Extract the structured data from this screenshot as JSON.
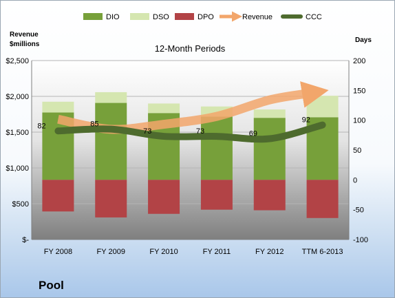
{
  "company": "Pool",
  "chart_data": {
    "type": "bar",
    "title": "12-Month Periods",
    "y_left_label": [
      "Revenue",
      "$millions"
    ],
    "y_right_label": "Days",
    "categories": [
      "FY 2008",
      "FY 2009",
      "FY 2010",
      "FY 2011",
      "FY 2012",
      "TTM 6-2013"
    ],
    "y_left_ticks": [
      "$2,500",
      "$2,000",
      "$1,500",
      "$1,000",
      "$500",
      "$-"
    ],
    "y_left_range": [
      0,
      2500
    ],
    "y_right_ticks": [
      "200",
      "150",
      "100",
      "50",
      "0",
      "-50",
      "-100"
    ],
    "y_right_range": [
      -100,
      200
    ],
    "legend": [
      "DIO",
      "DSO",
      "DPO",
      "Revenue",
      "CCC"
    ],
    "series": [
      {
        "name": "DIO",
        "axis": "right",
        "color": "#77a03a",
        "values": [
          113,
          129,
          112,
          106,
          104,
          105
        ]
      },
      {
        "name": "DSO",
        "axis": "right",
        "color": "#d5e6b0",
        "values": [
          18,
          18,
          16,
          17,
          14,
          36
        ]
      },
      {
        "name": "DPO",
        "axis": "right",
        "color": "#b24346",
        "values": [
          -53,
          -63,
          -57,
          -50,
          -51,
          -64
        ]
      },
      {
        "name": "Revenue",
        "axis": "left",
        "color": "#f2a66b",
        "values": [
          1680,
          1540,
          1610,
          1720,
          1950,
          2050
        ]
      },
      {
        "name": "CCC",
        "axis": "right",
        "color": "#4e6b2e",
        "values": [
          82,
          85,
          73,
          73,
          69,
          92
        ],
        "labels": [
          "82",
          "85",
          "73",
          "73",
          "69",
          "92"
        ]
      }
    ]
  }
}
